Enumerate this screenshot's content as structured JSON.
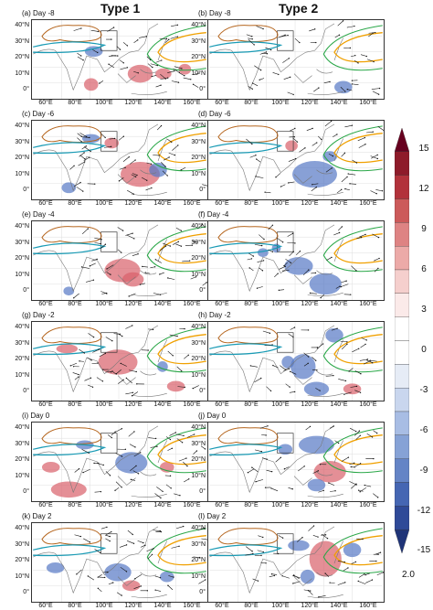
{
  "columns": [
    "Type 1",
    "Type 2"
  ],
  "panels": [
    {
      "label": "(a)  Day -8",
      "col": 0,
      "row": 0,
      "shading": [
        [
          65,
          72,
          8,
          7,
          1
        ],
        [
          68,
          35,
          10,
          6,
          -1
        ],
        [
          120,
          60,
          14,
          10,
          1
        ],
        [
          146,
          60,
          9,
          6,
          1
        ],
        [
          170,
          55,
          7,
          6,
          1
        ]
      ]
    },
    {
      "label": "(b)  Day -8",
      "col": 1,
      "row": 0,
      "shading": [
        [
          150,
          75,
          10,
          7,
          -1
        ]
      ]
    },
    {
      "label": "(c)  Day -6",
      "col": 0,
      "row": 1,
      "shading": [
        [
          88,
          25,
          8,
          6,
          1
        ],
        [
          65,
          20,
          10,
          5,
          -1
        ],
        [
          120,
          60,
          22,
          14,
          1
        ],
        [
          140,
          55,
          10,
          8,
          -1
        ],
        [
          40,
          75,
          8,
          6,
          -1
        ]
      ]
    },
    {
      "label": "(d)  Day -6",
      "col": 1,
      "row": 1,
      "shading": [
        [
          118,
          60,
          25,
          15,
          -1
        ],
        [
          92,
          28,
          7,
          6,
          1
        ],
        [
          135,
          40,
          8,
          6,
          -1
        ]
      ]
    },
    {
      "label": "(e)  Day -4",
      "col": 0,
      "row": 2,
      "shading": [
        [
          100,
          55,
          20,
          13,
          1
        ],
        [
          112,
          65,
          12,
          8,
          1
        ],
        [
          40,
          78,
          6,
          5,
          -1
        ]
      ]
    },
    {
      "label": "(f)  Day -4",
      "col": 1,
      "row": 2,
      "shading": [
        [
          100,
          50,
          16,
          10,
          -1
        ],
        [
          130,
          70,
          18,
          12,
          -1
        ],
        [
          60,
          35,
          6,
          5,
          -1
        ],
        [
          75,
          30,
          5,
          5,
          -1
        ]
      ]
    },
    {
      "label": "(g)  Day -2",
      "col": 0,
      "row": 3,
      "shading": [
        [
          95,
          45,
          22,
          14,
          1
        ],
        [
          38,
          30,
          12,
          5,
          1
        ],
        [
          145,
          50,
          6,
          6,
          -1
        ],
        [
          160,
          72,
          10,
          6,
          1
        ]
      ]
    },
    {
      "label": "(h)  Day -2",
      "col": 1,
      "row": 3,
      "shading": [
        [
          105,
          50,
          14,
          14,
          -1
        ],
        [
          120,
          75,
          14,
          8,
          -1
        ],
        [
          140,
          15,
          10,
          8,
          -1
        ],
        [
          88,
          45,
          7,
          7,
          -1
        ],
        [
          160,
          75,
          10,
          6,
          1
        ]
      ]
    },
    {
      "label": "(i)  Day 0",
      "col": 0,
      "row": 4,
      "shading": [
        [
          40,
          75,
          20,
          9,
          1
        ],
        [
          20,
          50,
          10,
          6,
          1
        ],
        [
          110,
          45,
          18,
          12,
          -1
        ],
        [
          150,
          50,
          8,
          6,
          1
        ],
        [
          58,
          25,
          10,
          5,
          -1
        ]
      ]
    },
    {
      "label": "(j)  Day 0",
      "col": 1,
      "row": 4,
      "shading": [
        [
          120,
          25,
          20,
          10,
          -1
        ],
        [
          135,
          55,
          18,
          12,
          1
        ],
        [
          120,
          70,
          10,
          7,
          -1
        ],
        [
          85,
          30,
          8,
          6,
          -1
        ]
      ]
    },
    {
      "label": "(k)  Day 2",
      "col": 0,
      "row": 5,
      "shading": [
        [
          25,
          50,
          10,
          6,
          -1
        ],
        [
          95,
          55,
          15,
          10,
          -1
        ],
        [
          110,
          70,
          10,
          6,
          1
        ],
        [
          150,
          60,
          8,
          6,
          -1
        ]
      ]
    },
    {
      "label": "(l)  Day 2",
      "col": 1,
      "row": 5,
      "shading": [
        [
          130,
          40,
          18,
          20,
          1
        ],
        [
          100,
          25,
          12,
          6,
          -1
        ],
        [
          160,
          30,
          10,
          8,
          -1
        ],
        [
          110,
          60,
          8,
          8,
          -1
        ]
      ]
    }
  ],
  "lat_ticks": [
    "40°N",
    "30°N",
    "20°N",
    "10°N",
    "0°"
  ],
  "lon_ticks": [
    "60°E",
    "80°E",
    "100°E",
    "120°E",
    "140°E",
    "160°E"
  ],
  "colorbar": {
    "ticks": [
      "15",
      "12",
      "9",
      "6",
      "3",
      "0",
      "-3",
      "-6",
      "-9",
      "-12",
      "-15"
    ],
    "colors": [
      "#67001f",
      "#8e1b2a",
      "#b2323b",
      "#cc5a5a",
      "#de8383",
      "#ecaaa8",
      "#f5cfcd",
      "#fbeae9",
      "#ffffff",
      "#ffffff",
      "#e6ecf6",
      "#c9d6ee",
      "#a8bde4",
      "#86a2d6",
      "#6484c6",
      "#4566b3",
      "#2f4a98",
      "#1f3478"
    ],
    "ref_vector": "2.0"
  },
  "contour_colors": {
    "tp_contour": "#b5651d",
    "jet_contour": "#1a9bb5",
    "subtropical_high_5880": "#f0a000",
    "subtropical_high_5860": "#2aa748"
  }
}
